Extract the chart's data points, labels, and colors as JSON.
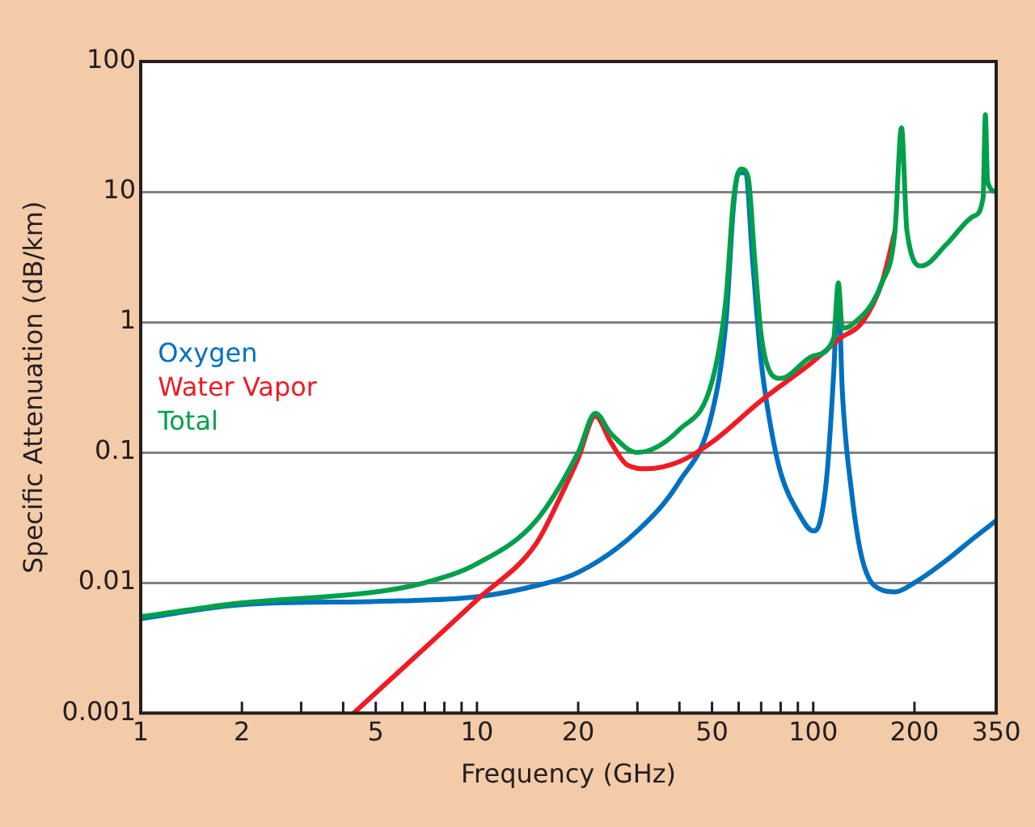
{
  "chart_data": {
    "type": "line",
    "xlabel": "Frequency (GHz)",
    "ylabel": "Specific Attenuation (dB/km)",
    "log": "xy",
    "grid": "y",
    "legend": "left",
    "marker": "none",
    "line_style": "solid",
    "xlim": [
      1,
      350
    ],
    "ylim": [
      0.001,
      100
    ],
    "xticks": [
      1,
      2,
      {
        "value": 3,
        "label": null
      },
      {
        "value": 4,
        "label": null
      },
      5,
      {
        "value": 6,
        "label": null
      },
      {
        "value": 7,
        "label": null
      },
      {
        "value": 8,
        "label": null
      },
      {
        "value": 9,
        "label": null
      },
      10,
      20,
      {
        "value": 30,
        "label": null
      },
      {
        "value": 40,
        "label": null
      },
      50,
      {
        "value": 60,
        "label": null
      },
      {
        "value": 70,
        "label": null
      },
      {
        "value": 80,
        "label": null
      },
      {
        "value": 90,
        "label": null
      },
      100,
      200,
      350
    ],
    "yticks": [
      0.001,
      0.01,
      0.1,
      1,
      10,
      100
    ],
    "series": [
      {
        "name": "Oxygen",
        "color": "#0070c0",
        "x": [
          1,
          2,
          5,
          10,
          15,
          20,
          30,
          40,
          50,
          55,
          58,
          60,
          63,
          66,
          70,
          75,
          80,
          90,
          100,
          105,
          110,
          115,
          118.75,
          122,
          130,
          140,
          160,
          175,
          200,
          250,
          300,
          350
        ],
        "values": [
          0.0053,
          0.0068,
          0.0072,
          0.0078,
          0.0095,
          0.012,
          0.025,
          0.06,
          0.2,
          1,
          8,
          14,
          14,
          3,
          0.5,
          0.15,
          0.07,
          0.035,
          0.025,
          0.03,
          0.07,
          0.4,
          1.9,
          0.3,
          0.05,
          0.015,
          0.0088,
          0.0085,
          0.01,
          0.015,
          0.022,
          0.03
        ]
      },
      {
        "name": "Water Vapor",
        "color": "#ee1c25",
        "x": [
          4.3,
          10,
          15,
          18,
          20,
          22.5,
          25,
          28,
          32,
          40,
          50,
          70,
          100,
          120,
          140,
          160,
          175
        ],
        "values": [
          0.001,
          0.0074,
          0.02,
          0.05,
          0.09,
          0.19,
          0.12,
          0.08,
          0.075,
          0.085,
          0.12,
          0.25,
          0.5,
          0.75,
          1,
          2,
          5
        ]
      },
      {
        "name": "Total",
        "color": "#00a04b",
        "x": [
          1,
          2,
          5,
          7,
          10,
          15,
          20,
          22.5,
          25,
          30,
          40,
          50,
          55,
          58,
          61,
          64,
          67,
          70,
          75,
          80,
          100,
          115,
          118.75,
          122,
          130,
          160,
          175,
          183,
          190,
          210,
          250,
          300,
          320,
          325,
          330,
          350
        ],
        "values": [
          0.0055,
          0.007,
          0.0085,
          0.01,
          0.014,
          0.03,
          0.1,
          0.2,
          0.14,
          0.1,
          0.15,
          0.35,
          1.5,
          9,
          15,
          13,
          3,
          0.8,
          0.4,
          0.37,
          0.55,
          0.75,
          2,
          0.9,
          0.95,
          2,
          5,
          31,
          5,
          2.7,
          4,
          6.5,
          9,
          39,
          12,
          10
        ]
      }
    ]
  }
}
